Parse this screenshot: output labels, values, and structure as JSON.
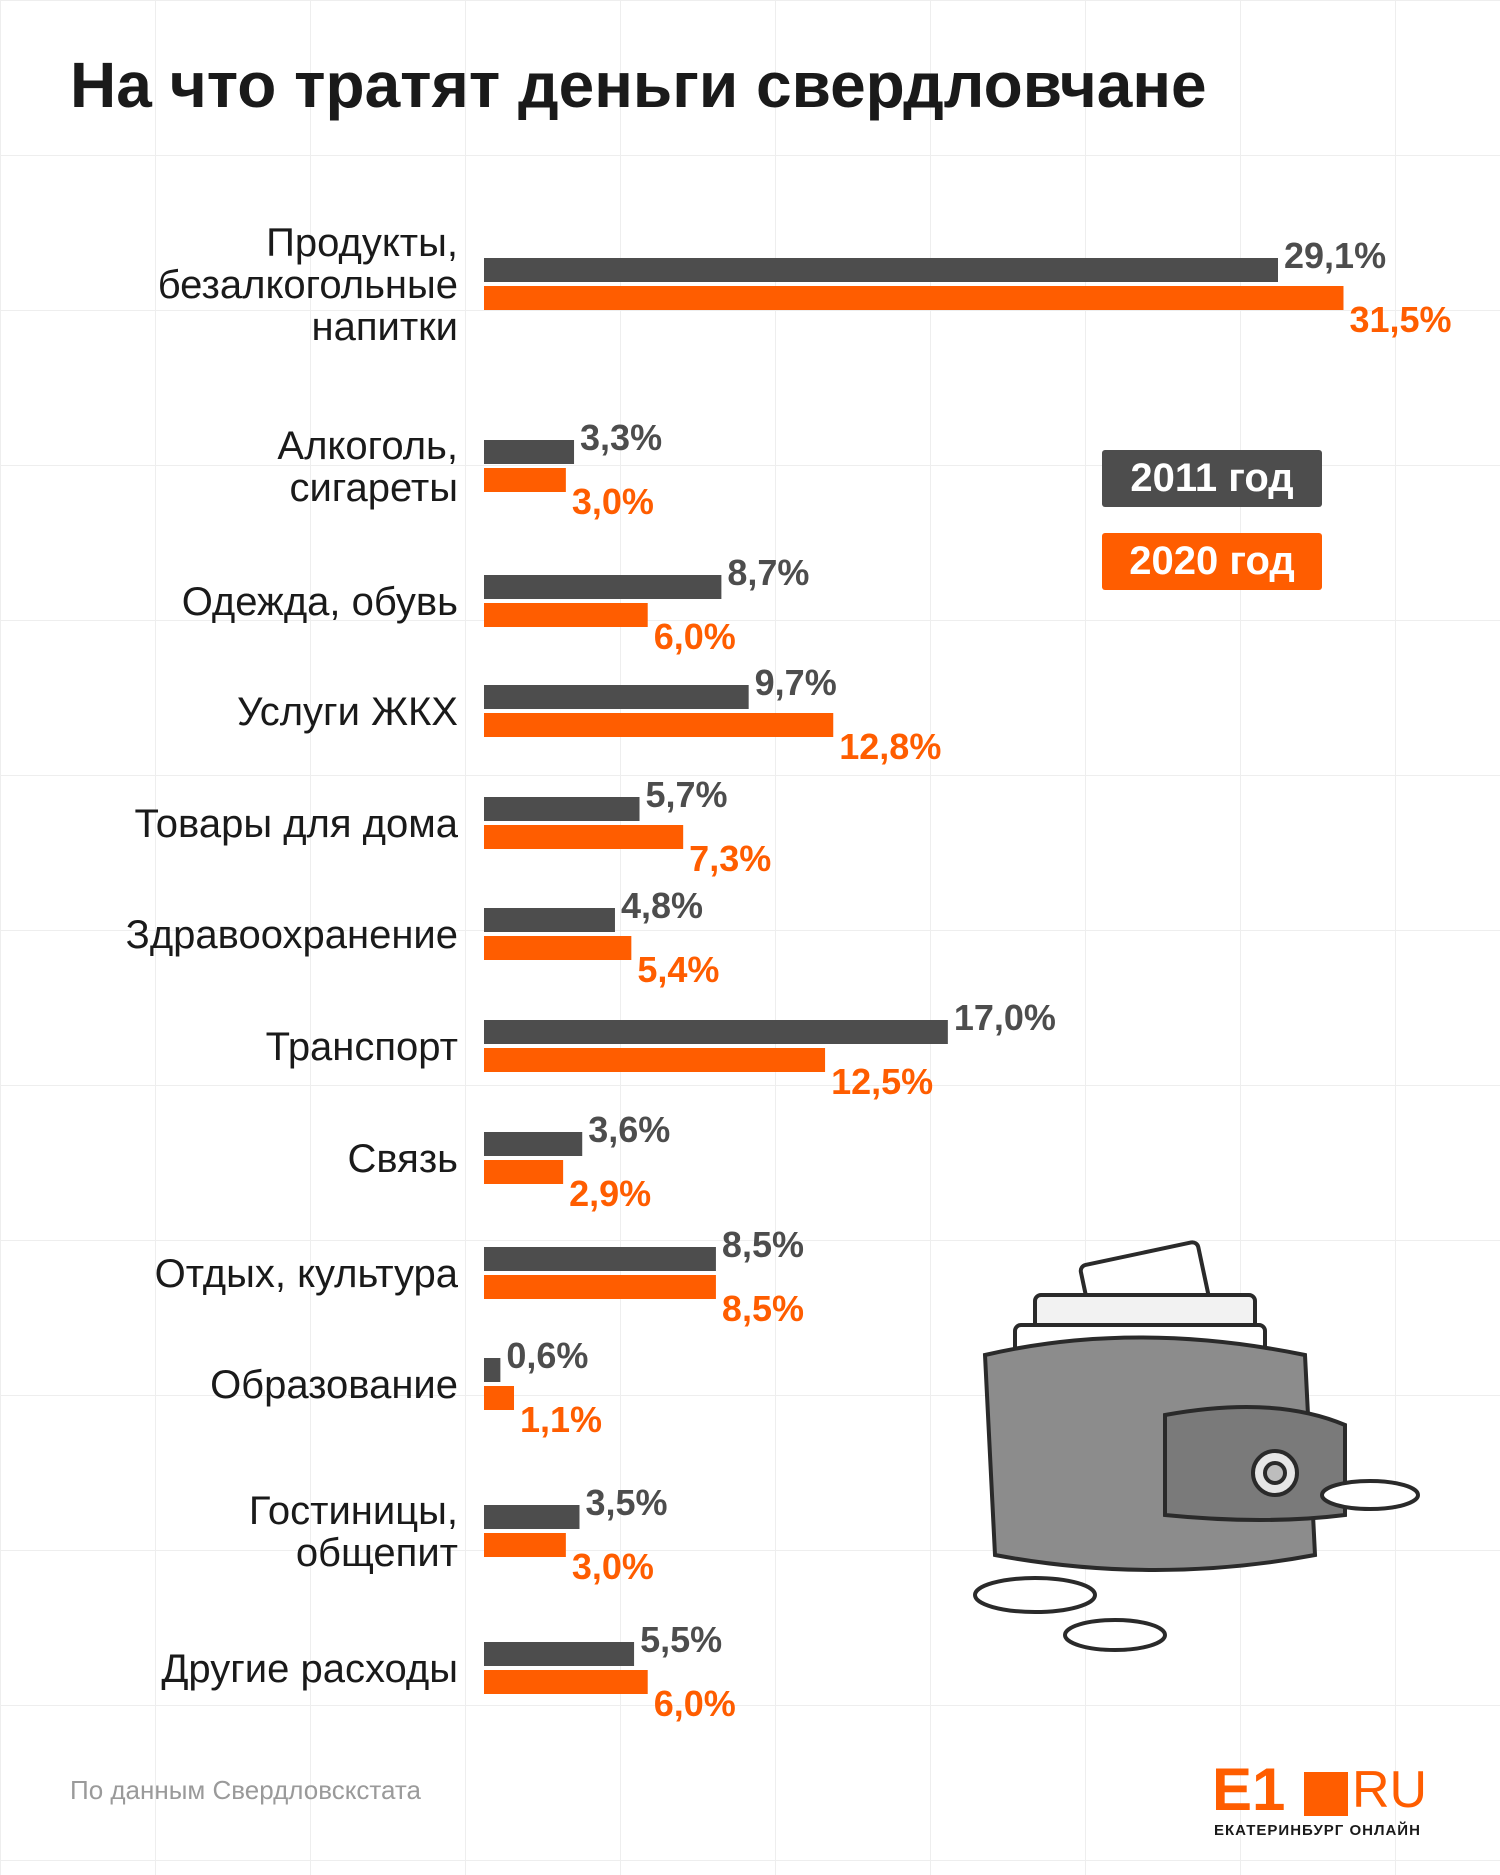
{
  "title": "На что тратят деньги свердловчане",
  "legend": {
    "y2011": "2011 год",
    "y2020": "2020 год"
  },
  "colors": {
    "y2011": "#4d4d4d",
    "y2020": "#ff5d00",
    "text": "#1a1a1a"
  },
  "source": "По данным Свердловскстата",
  "logo": {
    "main": "E1",
    "domain": "RU",
    "subtitle": "ЕКАТЕРИНБУРГ ОНЛАЙН"
  },
  "wallet_icon": "wallet-with-coins-icon",
  "chart_data": {
    "type": "bar",
    "orientation": "horizontal",
    "unit": "%",
    "categories": [
      [
        "Продукты,",
        "безалкогольные",
        "напитки"
      ],
      [
        "Алкоголь,",
        "сигареты"
      ],
      [
        "Одежда, обувь"
      ],
      [
        "Услуги ЖКХ"
      ],
      [
        "Товары для дома"
      ],
      [
        "Здравоохранение"
      ],
      [
        "Транспорт"
      ],
      [
        "Связь"
      ],
      [
        "Отдых, культура"
      ],
      [
        "Образование"
      ],
      [
        "Гостиницы,",
        "общепит"
      ],
      [
        "Другие расходы"
      ]
    ],
    "series": [
      {
        "name": "2011 год",
        "values": [
          29.1,
          3.3,
          8.7,
          9.7,
          5.7,
          4.8,
          17.0,
          3.6,
          8.5,
          0.6,
          3.5,
          5.5
        ],
        "labels": [
          "29,1%",
          "3,3%",
          "8,7%",
          "9,7%",
          "5,7%",
          "4,8%",
          "17,0%",
          "3,6%",
          "8,5%",
          "0,6%",
          "3,5%",
          "5,5%"
        ]
      },
      {
        "name": "2020 год",
        "values": [
          31.5,
          3.0,
          6.0,
          12.8,
          7.3,
          5.4,
          12.5,
          2.9,
          8.5,
          1.1,
          3.0,
          6.0
        ],
        "labels": [
          "31,5%",
          "3,0%",
          "6,0%",
          "12,8%",
          "7,3%",
          "5,4%",
          "12,5%",
          "2,9%",
          "8,5%",
          "1,1%",
          "3,0%",
          "6,0%"
        ]
      }
    ],
    "xlim": [
      0,
      32
    ],
    "grid": false,
    "legend_position": "right"
  }
}
